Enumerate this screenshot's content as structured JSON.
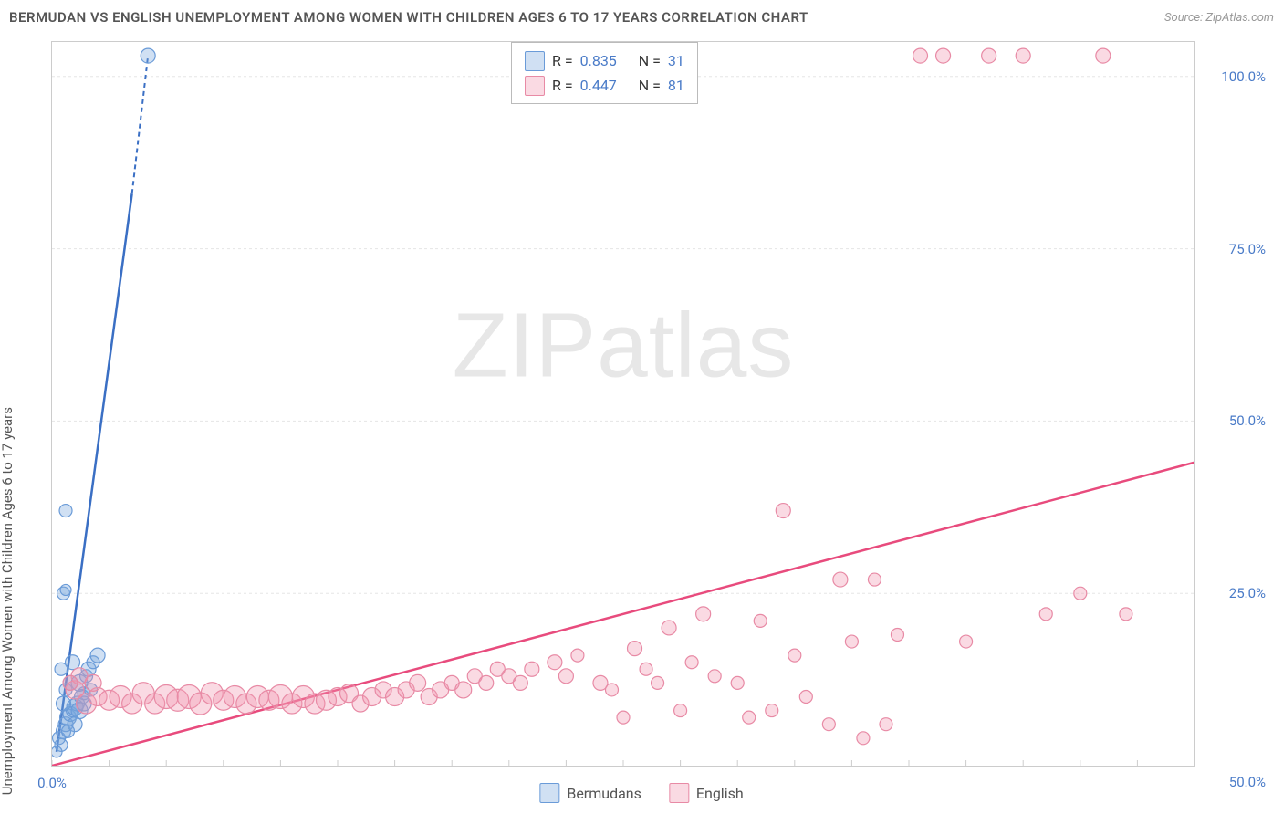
{
  "title": "BERMUDAN VS ENGLISH UNEMPLOYMENT AMONG WOMEN WITH CHILDREN AGES 6 TO 17 YEARS CORRELATION CHART",
  "source": "Source: ZipAtlas.com",
  "ylabel": "Unemployment Among Women with Children Ages 6 to 17 years",
  "watermark_zip": "ZIP",
  "watermark_atlas": "atlas",
  "chart": {
    "type": "scatter",
    "xlim": [
      0,
      50
    ],
    "ylim": [
      0,
      105
    ],
    "yticks": [
      25,
      50,
      75,
      100
    ],
    "ytick_labels": [
      "25.0%",
      "50.0%",
      "75.0%",
      "100.0%"
    ],
    "xtick_left_label": "0.0%",
    "xtick_right_label": "50.0%",
    "xtick_positions": [
      0,
      2.5,
      5,
      7.5,
      10,
      12.5,
      15,
      17.5,
      20,
      22.5,
      25,
      27.5,
      30,
      32.5,
      35,
      37.5,
      40,
      42.5,
      45,
      47.5,
      50
    ],
    "grid_color": "#e5e5e5",
    "background_color": "#ffffff",
    "series": [
      {
        "name": "Bermudans",
        "color_fill": "rgba(120,165,220,0.35)",
        "color_stroke": "#6a9bd8",
        "trend_color": "#3a6fc4",
        "R": "0.835",
        "N": "31",
        "trend": {
          "x1": 0.2,
          "y1": 2,
          "x2": 3.5,
          "y2": 83,
          "dash_x2": 4.2,
          "dash_y2": 103
        },
        "points": [
          {
            "x": 0.4,
            "y": 3,
            "r": 7
          },
          {
            "x": 0.5,
            "y": 5,
            "r": 8
          },
          {
            "x": 0.6,
            "y": 6,
            "r": 8
          },
          {
            "x": 0.7,
            "y": 7,
            "r": 9
          },
          {
            "x": 0.8,
            "y": 7.5,
            "r": 8
          },
          {
            "x": 0.9,
            "y": 8,
            "r": 7
          },
          {
            "x": 1.0,
            "y": 8.5,
            "r": 9
          },
          {
            "x": 1.1,
            "y": 9,
            "r": 8
          },
          {
            "x": 0.3,
            "y": 4,
            "r": 7
          },
          {
            "x": 1.3,
            "y": 10,
            "r": 8
          },
          {
            "x": 1.4,
            "y": 10.5,
            "r": 7
          },
          {
            "x": 0.5,
            "y": 9,
            "r": 8
          },
          {
            "x": 0.6,
            "y": 11,
            "r": 7
          },
          {
            "x": 0.8,
            "y": 12,
            "r": 8
          },
          {
            "x": 1.2,
            "y": 12,
            "r": 9
          },
          {
            "x": 1.5,
            "y": 13,
            "r": 7
          },
          {
            "x": 0.4,
            "y": 14,
            "r": 7
          },
          {
            "x": 0.9,
            "y": 15,
            "r": 8
          },
          {
            "x": 1.6,
            "y": 14,
            "r": 8
          },
          {
            "x": 1.8,
            "y": 15,
            "r": 7
          },
          {
            "x": 2.0,
            "y": 16,
            "r": 8
          },
          {
            "x": 0.5,
            "y": 25,
            "r": 7
          },
          {
            "x": 0.6,
            "y": 25.5,
            "r": 6
          },
          {
            "x": 0.6,
            "y": 37,
            "r": 7
          },
          {
            "x": 1.2,
            "y": 8,
            "r": 9
          },
          {
            "x": 1.0,
            "y": 6,
            "r": 8
          },
          {
            "x": 0.7,
            "y": 5,
            "r": 7
          },
          {
            "x": 1.4,
            "y": 9,
            "r": 8
          },
          {
            "x": 1.7,
            "y": 11,
            "r": 7
          },
          {
            "x": 0.2,
            "y": 2,
            "r": 6
          },
          {
            "x": 4.2,
            "y": 103,
            "r": 8
          }
        ]
      },
      {
        "name": "English",
        "color_fill": "rgba(240,150,175,0.35)",
        "color_stroke": "#e88aa5",
        "trend_color": "#e84b7d",
        "R": "0.447",
        "N": "81",
        "trend": {
          "x1": 0,
          "y1": 0,
          "x2": 50,
          "y2": 44
        },
        "points": [
          {
            "x": 1.0,
            "y": 11,
            "r": 10
          },
          {
            "x": 1.5,
            "y": 9,
            "r": 11
          },
          {
            "x": 2.0,
            "y": 10,
            "r": 10
          },
          {
            "x": 2.5,
            "y": 9.5,
            "r": 11
          },
          {
            "x": 3.0,
            "y": 10,
            "r": 12
          },
          {
            "x": 3.5,
            "y": 9,
            "r": 11
          },
          {
            "x": 4.0,
            "y": 10.5,
            "r": 12
          },
          {
            "x": 4.5,
            "y": 9,
            "r": 11
          },
          {
            "x": 5.0,
            "y": 10,
            "r": 13
          },
          {
            "x": 5.5,
            "y": 9.5,
            "r": 12
          },
          {
            "x": 6.0,
            "y": 10,
            "r": 13
          },
          {
            "x": 6.5,
            "y": 9,
            "r": 12
          },
          {
            "x": 7.0,
            "y": 10.5,
            "r": 12
          },
          {
            "x": 7.5,
            "y": 9.5,
            "r": 11
          },
          {
            "x": 8.0,
            "y": 10,
            "r": 12
          },
          {
            "x": 8.5,
            "y": 9,
            "r": 11
          },
          {
            "x": 9.0,
            "y": 10,
            "r": 12
          },
          {
            "x": 9.5,
            "y": 9.5,
            "r": 11
          },
          {
            "x": 10.0,
            "y": 10,
            "r": 13
          },
          {
            "x": 10.5,
            "y": 9,
            "r": 11
          },
          {
            "x": 11.0,
            "y": 10,
            "r": 12
          },
          {
            "x": 11.5,
            "y": 9,
            "r": 11
          },
          {
            "x": 12.0,
            "y": 9.5,
            "r": 11
          },
          {
            "x": 12.5,
            "y": 10,
            "r": 10
          },
          {
            "x": 13.0,
            "y": 10.5,
            "r": 10
          },
          {
            "x": 13.5,
            "y": 9,
            "r": 9
          },
          {
            "x": 14.0,
            "y": 10,
            "r": 10
          },
          {
            "x": 14.5,
            "y": 11,
            "r": 9
          },
          {
            "x": 15.0,
            "y": 10,
            "r": 10
          },
          {
            "x": 15.5,
            "y": 11,
            "r": 9
          },
          {
            "x": 16.0,
            "y": 12,
            "r": 9
          },
          {
            "x": 16.5,
            "y": 10,
            "r": 9
          },
          {
            "x": 17.0,
            "y": 11,
            "r": 9
          },
          {
            "x": 17.5,
            "y": 12,
            "r": 8
          },
          {
            "x": 18.0,
            "y": 11,
            "r": 9
          },
          {
            "x": 18.5,
            "y": 13,
            "r": 8
          },
          {
            "x": 19.0,
            "y": 12,
            "r": 8
          },
          {
            "x": 19.5,
            "y": 14,
            "r": 8
          },
          {
            "x": 20.0,
            "y": 13,
            "r": 8
          },
          {
            "x": 20.5,
            "y": 12,
            "r": 8
          },
          {
            "x": 21.0,
            "y": 14,
            "r": 8
          },
          {
            "x": 22.0,
            "y": 15,
            "r": 8
          },
          {
            "x": 22.5,
            "y": 13,
            "r": 8
          },
          {
            "x": 23.0,
            "y": 16,
            "r": 7
          },
          {
            "x": 24.0,
            "y": 12,
            "r": 8
          },
          {
            "x": 24.5,
            "y": 11,
            "r": 7
          },
          {
            "x": 25.0,
            "y": 7,
            "r": 7
          },
          {
            "x": 25.5,
            "y": 17,
            "r": 8
          },
          {
            "x": 26.0,
            "y": 14,
            "r": 7
          },
          {
            "x": 26.5,
            "y": 12,
            "r": 7
          },
          {
            "x": 27.0,
            "y": 20,
            "r": 8
          },
          {
            "x": 27.5,
            "y": 8,
            "r": 7
          },
          {
            "x": 28.0,
            "y": 15,
            "r": 7
          },
          {
            "x": 28.5,
            "y": 22,
            "r": 8
          },
          {
            "x": 29.0,
            "y": 13,
            "r": 7
          },
          {
            "x": 30.0,
            "y": 12,
            "r": 7
          },
          {
            "x": 30.5,
            "y": 7,
            "r": 7
          },
          {
            "x": 31.0,
            "y": 21,
            "r": 7
          },
          {
            "x": 31.5,
            "y": 8,
            "r": 7
          },
          {
            "x": 32.0,
            "y": 37,
            "r": 8
          },
          {
            "x": 32.5,
            "y": 16,
            "r": 7
          },
          {
            "x": 33.0,
            "y": 10,
            "r": 7
          },
          {
            "x": 34.0,
            "y": 6,
            "r": 7
          },
          {
            "x": 34.5,
            "y": 27,
            "r": 8
          },
          {
            "x": 35.0,
            "y": 18,
            "r": 7
          },
          {
            "x": 35.5,
            "y": 4,
            "r": 7
          },
          {
            "x": 36.0,
            "y": 27,
            "r": 7
          },
          {
            "x": 36.5,
            "y": 6,
            "r": 7
          },
          {
            "x": 37.0,
            "y": 19,
            "r": 7
          },
          {
            "x": 38.0,
            "y": 103,
            "r": 8
          },
          {
            "x": 39.0,
            "y": 103,
            "r": 8
          },
          {
            "x": 40.0,
            "y": 18,
            "r": 7
          },
          {
            "x": 41.0,
            "y": 103,
            "r": 8
          },
          {
            "x": 42.5,
            "y": 103,
            "r": 8
          },
          {
            "x": 43.5,
            "y": 22,
            "r": 7
          },
          {
            "x": 45.0,
            "y": 25,
            "r": 7
          },
          {
            "x": 46.0,
            "y": 103,
            "r": 8
          },
          {
            "x": 47.0,
            "y": 22,
            "r": 7
          },
          {
            "x": 1.2,
            "y": 13,
            "r": 9
          },
          {
            "x": 1.8,
            "y": 12,
            "r": 9
          },
          {
            "x": 0.8,
            "y": 12,
            "r": 8
          }
        ]
      }
    ]
  },
  "legend_top": {
    "label_R": "R =",
    "label_N": "N ="
  },
  "legend_bottom": {
    "items": [
      "Bermudans",
      "English"
    ]
  }
}
